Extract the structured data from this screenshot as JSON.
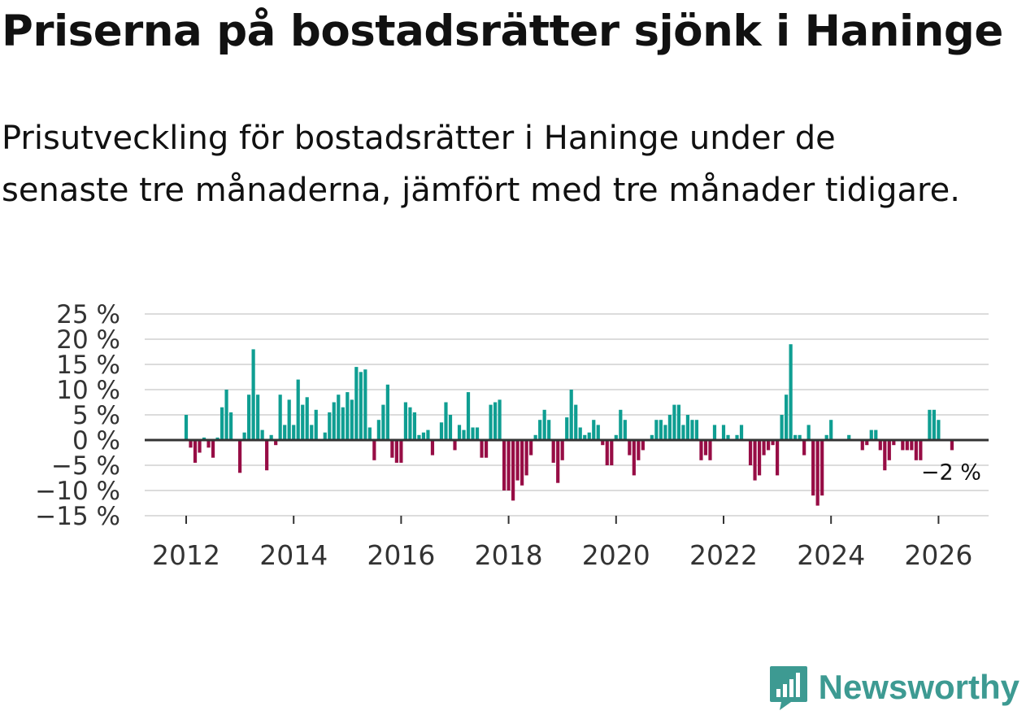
{
  "title": "Priserna på bostadsrätter sjönk i Haninge",
  "subtitle": "Prisutveckling för bostadsrätter i Haninge under de senaste tre månaderna, jämfört med tre månader tidigare.",
  "brand": {
    "name": "Newsworthy",
    "icon": "newsworthy-logo-icon"
  },
  "colors": {
    "positive": "#0f9e92",
    "negative": "#970d45",
    "grid": "#dcdcdc",
    "zero": "#333333",
    "brand": "#3d9a92"
  },
  "chart_data": {
    "type": "bar",
    "title": "Priserna på bostadsrätter sjönk i Haninge",
    "xlabel": "",
    "ylabel": "",
    "ylim": [
      -15,
      25
    ],
    "y_ticks": [
      25,
      20,
      15,
      10,
      5,
      0,
      -5,
      -10,
      -15
    ],
    "y_tick_labels": [
      "25 %",
      "20 %",
      "15 %",
      "10 %",
      "5 %",
      "0 %",
      "−5 %",
      "−10 %",
      "−15 %"
    ],
    "x_ticks": [
      2012,
      2014,
      2016,
      2018,
      2020,
      2022,
      2024,
      2026
    ],
    "x_tick_labels": [
      "2012",
      "2014",
      "2016",
      "2018",
      "2020",
      "2022",
      "2024",
      "2026"
    ],
    "grid": true,
    "start_year": 2012,
    "start_month": 1,
    "values": [
      5,
      -1.5,
      -4.5,
      -2.5,
      0.5,
      -1.5,
      -3.5,
      0.5,
      6.5,
      10,
      5.5,
      0,
      -6.5,
      1.5,
      9,
      18,
      9,
      2,
      -6,
      1,
      -1,
      9,
      3,
      8,
      3,
      12,
      7,
      8.5,
      3,
      6,
      0,
      1.5,
      5.5,
      7.5,
      9,
      6.5,
      9.5,
      8,
      14.5,
      13.5,
      14,
      2.5,
      -4,
      4,
      7,
      11,
      -3.5,
      -4.5,
      -4.5,
      7.5,
      6.5,
      5.5,
      1,
      1.5,
      2,
      -3,
      0,
      3.5,
      7.5,
      5,
      -2,
      3,
      2,
      9.5,
      2.5,
      2.5,
      -3.5,
      -3.5,
      7,
      7.5,
      8,
      -10,
      -10,
      -12,
      -8,
      -9,
      -7,
      -3,
      1,
      4,
      6,
      4,
      -4.5,
      -8.5,
      -4,
      4.5,
      10,
      7,
      2.5,
      1,
      1.5,
      4,
      3,
      -1,
      -5,
      -5,
      1,
      6,
      4,
      -3,
      -7,
      -4,
      -2,
      0,
      1,
      4,
      4,
      3,
      5,
      7,
      7,
      3,
      5,
      4,
      4,
      -4,
      -3,
      -4,
      3,
      0,
      3,
      1,
      0,
      1,
      3,
      0,
      -5,
      -8,
      -7,
      -3,
      -2,
      -1,
      -7,
      5,
      9,
      19,
      1,
      1,
      -3,
      3,
      -11,
      -13,
      -11,
      1,
      4,
      0,
      0,
      0,
      1,
      0,
      0,
      -2,
      -1,
      2,
      2,
      -2,
      -6,
      -4,
      -1,
      0,
      -2,
      -2,
      -2,
      -4,
      -4,
      0,
      6,
      6,
      4,
      0,
      0,
      -2
    ],
    "annotations": [
      {
        "text": "−2 %",
        "target": "last-bar"
      }
    ]
  }
}
